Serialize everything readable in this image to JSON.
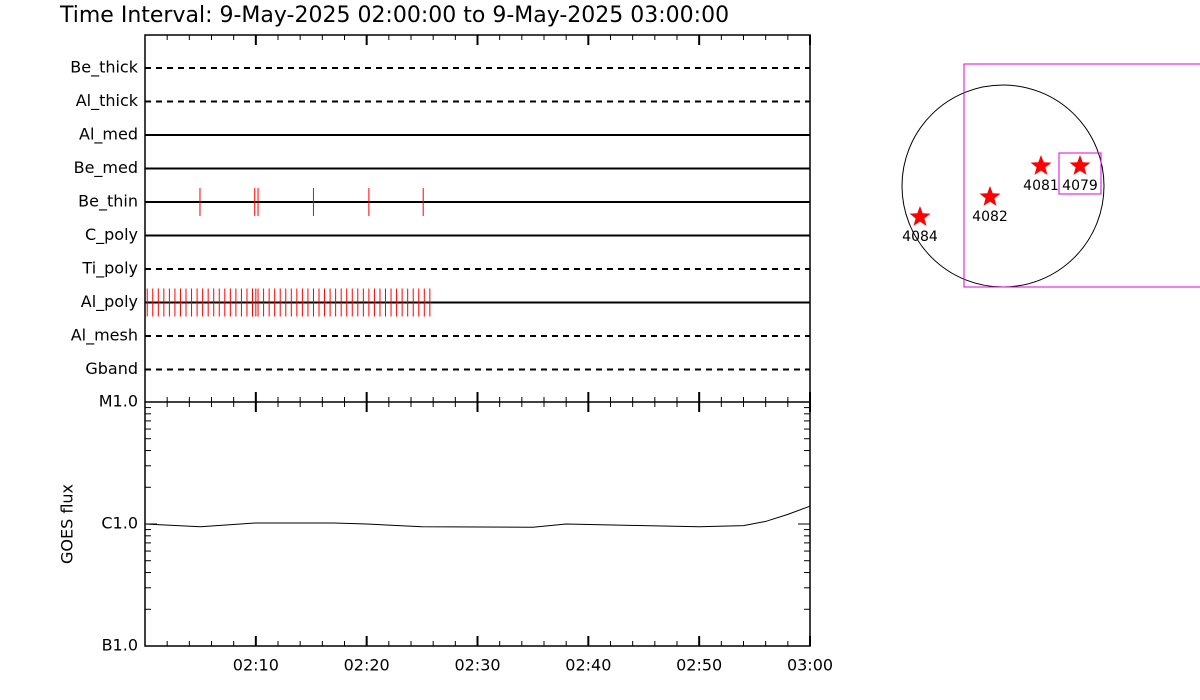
{
  "title": "Time Interval:  9-May-2025 02:00:00 to  9-May-2025 03:00:00",
  "chart_data": [
    {
      "type": "timeline",
      "xlim": [
        0,
        60
      ],
      "mark_color": "#ff0000",
      "series": [
        {
          "name": "Be_thick",
          "style": "dashed",
          "x": []
        },
        {
          "name": "Al_thick",
          "style": "dashed",
          "x": []
        },
        {
          "name": "Al_med",
          "style": "solid",
          "x": []
        },
        {
          "name": "Be_med",
          "style": "solid",
          "x": []
        },
        {
          "name": "Be_thin",
          "style": "solid",
          "x": [
            4.96,
            9.9,
            10.2,
            15.2,
            20.2,
            25.1
          ]
        },
        {
          "name": "C_poly",
          "style": "solid",
          "x": []
        },
        {
          "name": "Ti_poly",
          "style": "dashed",
          "x": []
        },
        {
          "name": "Al_poly",
          "style": "solid",
          "x": [
            0.2,
            0.7,
            1.2,
            1.7,
            2.2,
            2.7,
            3.2,
            3.7,
            4.2,
            4.7,
            5.2,
            5.7,
            6.2,
            6.7,
            7.2,
            7.7,
            8.2,
            8.7,
            9.2,
            9.7,
            10.0,
            10.2,
            10.7,
            11.2,
            11.7,
            12.2,
            12.7,
            13.2,
            13.7,
            14.2,
            14.7,
            15.2,
            15.7,
            16.2,
            16.7,
            17.2,
            17.7,
            18.2,
            18.7,
            19.2,
            19.7,
            20.2,
            20.7,
            21.2,
            21.7,
            22.2,
            22.7,
            23.2,
            23.7,
            24.2,
            24.7,
            25.2,
            25.7
          ]
        },
        {
          "name": "Al_mesh",
          "style": "dashed",
          "x": []
        },
        {
          "name": "Gband",
          "style": "dashed",
          "x": []
        }
      ]
    },
    {
      "type": "line",
      "ylabel": "GOES flux",
      "log_scale": true,
      "color": "#000000",
      "xlim": [
        0,
        60
      ],
      "ylim": [
        1e-07,
        1e-05
      ],
      "yticks": [
        {
          "value": 1e-05,
          "label": "M1.0"
        },
        {
          "value": 1e-06,
          "label": "C1.0"
        },
        {
          "value": 1e-07,
          "label": "B1.0"
        }
      ],
      "xticks": [
        {
          "value": 10,
          "label": "02:10"
        },
        {
          "value": 20,
          "label": "02:20"
        },
        {
          "value": 30,
          "label": "02:30"
        },
        {
          "value": 40,
          "label": "02:40"
        },
        {
          "value": 50,
          "label": "02:50"
        },
        {
          "value": 60,
          "label": "03:00"
        }
      ],
      "x": [
        0,
        5,
        10,
        17,
        20,
        25,
        35,
        38,
        45,
        50,
        54,
        56,
        58,
        60
      ],
      "values": [
        1e-06,
        9.5e-07,
        1.02e-06,
        1.02e-06,
        1e-06,
        9.5e-07,
        9.4e-07,
        1e-06,
        9.7e-07,
        9.5e-07,
        9.7e-07,
        1.05e-06,
        1.2e-06,
        1.4e-06
      ]
    },
    {
      "type": "map",
      "color": "#ff0000",
      "regions": [
        {
          "label": "4084"
        },
        {
          "label": "4082"
        },
        {
          "label": "4081"
        },
        {
          "label": "4079"
        }
      ]
    }
  ]
}
